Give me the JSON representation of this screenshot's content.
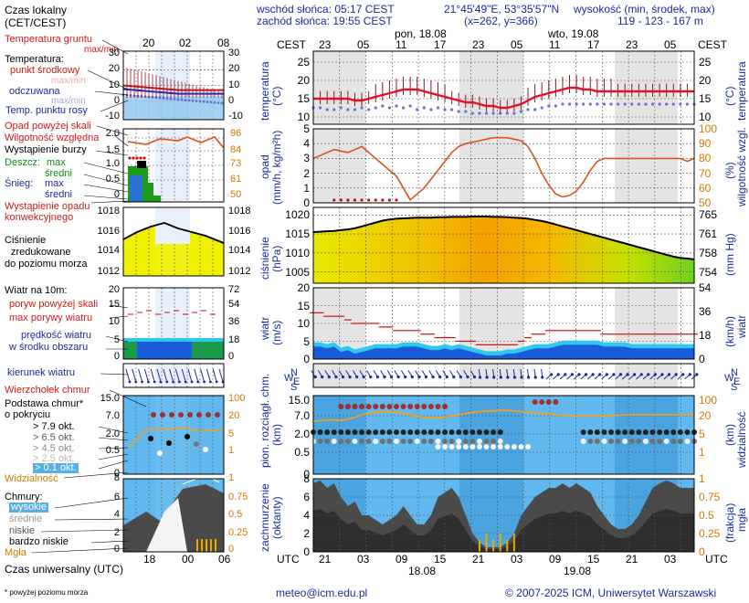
{
  "header": {
    "sunrise": "wschód słońca: 05:17 CEST",
    "sunset": "zachód słońca: 19:55 CEST",
    "coords": "21°45'49\"E, 53°35'57\"N",
    "grid": "(x=262, y=366)",
    "elevation_title": "wysokość (min, środek, max)",
    "elevation_values": "119 - 123 - 167 m"
  },
  "top_axis": {
    "tz": "CEST",
    "day1": "pon, 18.08",
    "day2": "wto, 19.08",
    "hours": [
      "23",
      "05",
      "11",
      "17",
      "23",
      "05",
      "11",
      "17",
      "23",
      "05"
    ]
  },
  "bottom_axis": {
    "tz": "UTC",
    "hours": [
      "21",
      "03",
      "09",
      "15",
      "21",
      "03",
      "09",
      "15",
      "21",
      "03"
    ],
    "date1": "18.08",
    "date2": "19.08"
  },
  "legend_time": {
    "title1": "Czas lokalny",
    "title2": "(CET/CEST)",
    "hours": [
      "20",
      "02",
      "08"
    ],
    "utc_title": "Czas uniwersalny (UTC)",
    "utc_hours": [
      "18",
      "00",
      "06"
    ]
  },
  "legend": {
    "temp_soil": "Temperatura gruntu",
    "temp_soil_sub": "max/min",
    "temp": "Temperatura:",
    "temp_mid": "punkt środkowy",
    "temp_maxmin": "max/min",
    "felt": "odczuwana",
    "felt_maxmin": "max/min",
    "dew": "Temp. punktu rosy",
    "temp_ticks_left": [
      "30",
      "20",
      "10",
      "0",
      "-10"
    ],
    "temp_ticks_right": [
      "30",
      "20",
      "10",
      "0",
      "-10"
    ],
    "precip_over": "Opad powyżej skali",
    "humidity": "Wilgotność względna",
    "storm": "Wystąpienie burzy",
    "rain": "Deszcz:",
    "rain_max": "max",
    "rain_mid": "średni",
    "snow": "Śnieg:",
    "snow_max": "max",
    "snow_mid": "średni",
    "precip_occ1": "Wystąpienie opadu",
    "precip_occ2": "konwekcyjnego",
    "precip_ticks_left": [
      "2.0",
      "1.5",
      "1.0",
      "0.5",
      "0"
    ],
    "precip_ticks_right": [
      "96",
      "84",
      "73",
      "61",
      "50"
    ],
    "pressure1": "Ciśnienie",
    "pressure2": "zredukowane",
    "pressure3": "do poziomu morza",
    "pressure_ticks": [
      "1018",
      "1016",
      "1014",
      "1012"
    ],
    "wind_title": "Wiatr na 10m:",
    "gust_over": "poryw powyżej skali",
    "gust_max": "max porywy wiatru",
    "wind_speed1": "prędkość wiatru",
    "wind_speed2": "w środku obszaru",
    "wind_ticks_left": [
      "20",
      "15",
      "10",
      "5",
      "0"
    ],
    "wind_ticks_right": [
      "72",
      "54",
      "36",
      "18",
      "0"
    ],
    "wind_dir": "kierunek wiatru",
    "cloud_top": "Wierzchołek chmur",
    "cloud_base1": "Podstawa chmur*",
    "cloud_base2": "o pokryciu",
    "okt": [
      "> 7.9 okt.",
      "> 6.5 okt.",
      "> 4.5 okt.",
      "> 2.5 okt.",
      "> 0.1 okt."
    ],
    "visibility": "Widzialność",
    "cloud_ticks_left": [
      "15.0",
      "7.0",
      "2.0",
      "0.5",
      "0"
    ],
    "cloud_ticks_right": [
      "100",
      "20",
      "5",
      "1"
    ],
    "clouds": "Chmury:",
    "cloud_high": "wysokie",
    "cloud_mid": "średnie",
    "cloud_low": "niskie",
    "cloud_vlow": "bardzo niskie",
    "fog": "Mgła",
    "cc_ticks_left": [
      "8",
      "6",
      "4",
      "2",
      "0"
    ],
    "cc_ticks_right": [
      "1",
      "0.75",
      "0.5",
      "0.25",
      "0"
    ],
    "footnote": "* powyżej poziomu morza"
  },
  "panels": {
    "temp": {
      "ylabel": "temperatura",
      "unit": "(°C)",
      "ticks": [
        "25",
        "20",
        "15",
        "10"
      ]
    },
    "precip": {
      "ylabel": "opad",
      "unit": "(mm/h, kg/m²h)",
      "ticks_left": [
        "5",
        "4",
        "3",
        "2",
        "1",
        "0"
      ],
      "ticks_right": [
        "100",
        "90",
        "80",
        "70",
        "60",
        "50"
      ],
      "ylabel_r": "wilgotność wzgl.",
      "unit_r": "(%)"
    },
    "pressure": {
      "ylabel": "ciśnienie",
      "unit": "(hPa)",
      "ticks_left": [
        "1020",
        "1015",
        "1010",
        "1005"
      ],
      "ticks_right": [
        "765",
        "761",
        "758",
        "754"
      ],
      "ylabel_r": "(mm Hg)"
    },
    "wind": {
      "ylabel": "wiatr",
      "unit": "(m/s)",
      "ticks_left": [
        "20",
        "15",
        "10",
        "5",
        "0"
      ],
      "ticks_right": [
        "54",
        "36",
        "18",
        "0"
      ],
      "ylabel_r": "wiatr",
      "unit_r": "(km/h)"
    },
    "dir": {
      "n": "N",
      "s": "S",
      "w": "W",
      "e": "E"
    },
    "cloud": {
      "ylabel": "pion. rozciągł. chm.",
      "unit": "(km)",
      "ticks_left": [
        "15.0",
        "7.0",
        "2.0",
        "0.5",
        "0"
      ],
      "ticks_right": [
        "100",
        "20",
        "5",
        "1"
      ],
      "ylabel_r": "widzialność",
      "unit_r": "(km)"
    },
    "cover": {
      "ylabel": "zachmurzenie",
      "unit": "(oktanty)",
      "ticks_left": [
        "8",
        "6",
        "4",
        "2",
        "0"
      ],
      "ticks_right": [
        "1",
        "0.75",
        "0.5",
        "0.25",
        "0"
      ],
      "ylabel_r": "mgła",
      "unit_r": "(frakcja)"
    }
  },
  "footer": {
    "email": "meteo@icm.edu.pl",
    "copyright": "© 2007-2025 ICM, Uniwersytet Warszawski"
  },
  "chart_data": {
    "type": "line",
    "x": [
      "23",
      "00",
      "01",
      "02",
      "03",
      "04",
      "05",
      "06",
      "07",
      "08",
      "09",
      "10",
      "11",
      "12",
      "13",
      "14",
      "15",
      "16",
      "17",
      "18",
      "19",
      "20",
      "21",
      "22",
      "23",
      "00",
      "01",
      "02",
      "03",
      "04",
      "05",
      "06",
      "07",
      "08",
      "09",
      "10",
      "11",
      "12",
      "13",
      "14",
      "15",
      "16",
      "17",
      "18",
      "19",
      "20",
      "21",
      "22",
      "23",
      "00",
      "01",
      "02",
      "03",
      "04",
      "05",
      "06"
    ],
    "series": [
      {
        "name": "temperatura",
        "values": [
          15,
          15,
          15,
          15,
          15,
          15,
          14.5,
          14.5,
          15,
          15.5,
          16,
          16.5,
          17,
          17.5,
          17.5,
          17.5,
          17,
          16.5,
          16,
          15.5,
          15,
          14.5,
          14,
          14,
          13.5,
          13,
          13,
          12.5,
          12.5,
          13,
          13.5,
          14.5,
          15.5,
          16,
          16.5,
          17,
          17.5,
          18,
          18,
          17.5,
          17.5,
          17,
          17,
          17,
          17,
          17,
          17,
          17,
          17,
          17,
          17,
          17,
          17,
          17,
          17,
          17
        ]
      },
      {
        "name": "temp. punktu rosy",
        "values": [
          12.5,
          12.5,
          12,
          12,
          12.5,
          12,
          12,
          12.5,
          12,
          12.5,
          13,
          12.5,
          13,
          12.5,
          13,
          12,
          12.5,
          12,
          12.5,
          12,
          12,
          11.5,
          11.5,
          11,
          11,
          11,
          11,
          11,
          11,
          11,
          11.5,
          12,
          12,
          12.5,
          13,
          13,
          13.5,
          13.5,
          13.5,
          13.5,
          13.5,
          13.5,
          13.5,
          13.5,
          13.5,
          13.5,
          13.5,
          13.5,
          13.5,
          13.5,
          13.5,
          13.5,
          13.5,
          13.5,
          13.5,
          13.5
        ]
      },
      {
        "name": "wilgotność względna",
        "values": [
          80,
          82,
          84,
          86,
          85,
          84,
          86,
          88,
          84,
          80,
          76,
          72,
          68,
          60,
          52,
          56,
          60,
          66,
          72,
          78,
          84,
          88,
          90,
          91,
          92,
          93,
          94,
          94,
          94,
          93,
          92,
          88,
          80,
          70,
          62,
          56,
          54,
          55,
          58,
          64,
          72,
          78,
          80,
          80,
          80,
          80,
          80,
          80,
          80,
          80,
          80,
          80,
          80,
          80,
          78,
          80
        ]
      },
      {
        "name": "ciśnienie",
        "values": [
          1015.5,
          1015.6,
          1015.7,
          1015.8,
          1016,
          1016.2,
          1016.5,
          1017,
          1017.5,
          1018,
          1018.5,
          1018.8,
          1019,
          1019.1,
          1019.2,
          1019.3,
          1019.3,
          1019.3,
          1019.4,
          1019.4,
          1019.5,
          1019.5,
          1019.5,
          1019.6,
          1019.6,
          1019.6,
          1019.5,
          1019.5,
          1019.4,
          1019.3,
          1019.2,
          1019,
          1018.7,
          1018.4,
          1018,
          1017.5,
          1017,
          1016.5,
          1016,
          1015.5,
          1015,
          1014.5,
          1014,
          1013.5,
          1013,
          1012.5,
          1012,
          1011.5,
          1011,
          1010.5,
          1010,
          1009.5,
          1009,
          1008.7,
          1008.5,
          1008.3
        ]
      },
      {
        "name": "prędkość wiatru",
        "values": [
          3.5,
          3.5,
          3,
          3.5,
          2,
          2.5,
          1.5,
          2,
          2.5,
          3,
          3,
          3,
          3,
          3.5,
          3.5,
          3.5,
          3,
          2.5,
          2.5,
          3,
          2.5,
          3,
          2.5,
          2,
          1.5,
          1,
          1,
          1,
          1.5,
          1.5,
          2,
          2.5,
          3,
          3,
          3,
          3.5,
          4,
          4,
          4,
          4,
          4,
          4,
          3.5,
          3.5,
          3.5,
          3.5,
          3,
          3,
          3,
          3,
          3,
          3,
          3,
          3,
          3,
          3
        ]
      },
      {
        "name": "max porywy wiatru",
        "values": [
          13,
          13,
          12,
          12,
          12,
          11,
          10,
          10,
          10,
          10,
          9,
          9,
          8,
          8,
          8,
          8,
          7,
          7,
          6,
          6,
          6,
          5,
          5,
          5,
          4,
          4,
          4,
          4,
          4,
          4,
          5,
          6,
          7,
          7,
          8,
          8,
          8,
          8,
          8,
          8,
          8,
          8,
          7,
          7,
          7,
          7,
          7,
          7,
          7,
          7,
          7,
          7,
          7,
          7,
          7,
          7
        ]
      }
    ]
  }
}
